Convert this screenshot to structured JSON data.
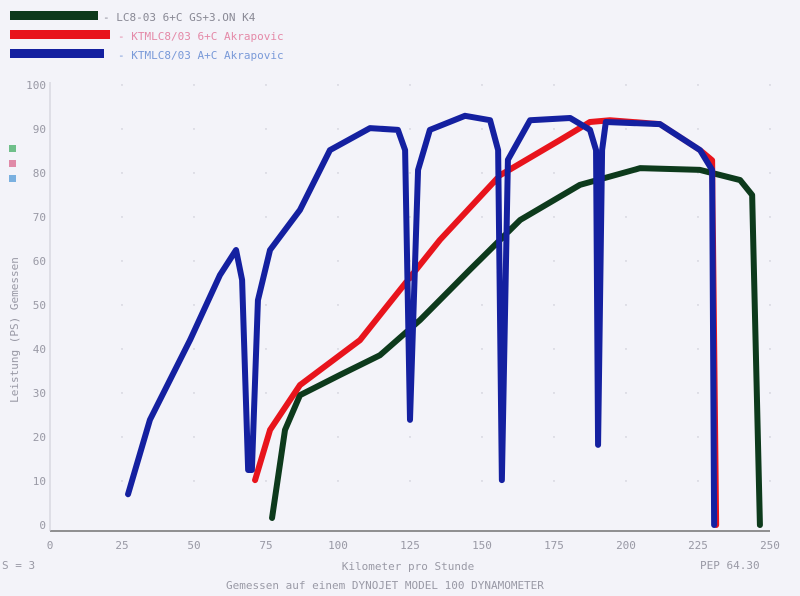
{
  "chart_data": {
    "type": "line",
    "title": "",
    "xlabel": "Kilometer pro Stunde",
    "ylabel": "Leistung (PS) Gemessen",
    "footer": "Gemessen auf einem DYNOJET MODEL 100 DYNAMOMETER",
    "smoothing": "S = 3",
    "corner_note": "PEP 64.30",
    "xlim": [
      0,
      250
    ],
    "ylim": [
      0,
      100
    ],
    "xticks": [
      "0",
      "25",
      "50",
      "75",
      "100",
      "125",
      "150",
      "175",
      "200",
      "225",
      "250"
    ],
    "yticks": [
      "0",
      "10",
      "20",
      "30",
      "40",
      "50",
      "60",
      "70",
      "80",
      "90",
      "100"
    ],
    "legend_position": "top-left",
    "series": [
      {
        "name": "- LC8-03 6+C GS+3.ON K4",
        "color": "#0d3a1c",
        "text_color": "#8a8a96",
        "points": [
          [
            77.1,
            1.6
          ],
          [
            81.6,
            21.6
          ],
          [
            86.8,
            29.5
          ],
          [
            100.7,
            34.1
          ],
          [
            114.6,
            38.6
          ],
          [
            128.5,
            46.6
          ],
          [
            145.8,
            58
          ],
          [
            163.2,
            69.3
          ],
          [
            184,
            77.3
          ],
          [
            204.9,
            81.1
          ],
          [
            225.7,
            80.7
          ],
          [
            239.6,
            78.4
          ],
          [
            243.8,
            75
          ],
          [
            246.5,
            0
          ]
        ]
      },
      {
        "name": "- KTMLC8/03 6+C  Akrapovic",
        "color": "#e8141c",
        "text_color": "#e48aa8",
        "points": [
          [
            71.2,
            10.2
          ],
          [
            76.4,
            21.6
          ],
          [
            86.8,
            31.8
          ],
          [
            107.6,
            42
          ],
          [
            121.5,
            53.4
          ],
          [
            135.4,
            64.8
          ],
          [
            156.3,
            79.5
          ],
          [
            177.1,
            87.5
          ],
          [
            187.5,
            91.6
          ],
          [
            194.4,
            92
          ],
          [
            211.8,
            91.1
          ],
          [
            225.7,
            85.2
          ],
          [
            229.9,
            82.9
          ],
          [
            231.3,
            0
          ]
        ]
      },
      {
        "name": "- KTMLC8/03 A+C  Akrapovic",
        "color": "#1420a0",
        "text_color": "#7a9ad8",
        "points": [
          [
            27.1,
            7
          ],
          [
            34.7,
            23.9
          ],
          [
            48.6,
            42
          ],
          [
            59,
            56.8
          ],
          [
            64.6,
            62.5
          ],
          [
            66.7,
            55.7
          ],
          [
            68.8,
            12.5
          ],
          [
            70.1,
            12.5
          ],
          [
            72.2,
            51.1
          ],
          [
            76.4,
            62.5
          ],
          [
            86.8,
            71.6
          ],
          [
            97.2,
            85.2
          ],
          [
            111.1,
            90.2
          ],
          [
            120.8,
            89.8
          ],
          [
            123.3,
            85.2
          ],
          [
            125,
            23.9
          ],
          [
            127.8,
            80.7
          ],
          [
            131.9,
            89.8
          ],
          [
            144.1,
            93
          ],
          [
            152.8,
            92
          ],
          [
            155.6,
            85.2
          ],
          [
            156.9,
            10.2
          ],
          [
            159,
            83
          ],
          [
            166.7,
            92
          ],
          [
            180.6,
            92.5
          ],
          [
            187.5,
            89.8
          ],
          [
            189.6,
            85.2
          ],
          [
            190.3,
            18.2
          ],
          [
            191.7,
            85.2
          ],
          [
            193,
            91.6
          ],
          [
            211.8,
            91.1
          ],
          [
            225.7,
            85.2
          ],
          [
            229.9,
            80.7
          ],
          [
            230.6,
            0
          ]
        ]
      }
    ]
  }
}
